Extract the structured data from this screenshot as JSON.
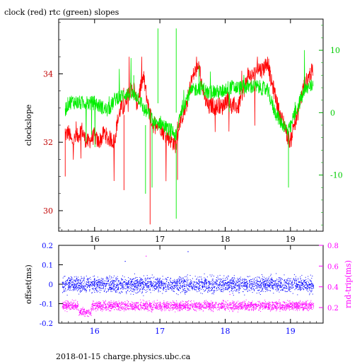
{
  "title": "clock (red) rtc (green) slopes",
  "footer": "2018-01-15 charge.physics.ubc.ca",
  "colors": {
    "red": "#ff0000",
    "green": "#00ee00",
    "blue": "#0000ff",
    "magenta": "#ff00ff",
    "axis": "#000000"
  },
  "chart_data": [
    {
      "type": "line",
      "title": "clock (red) rtc (green) slopes",
      "ylabel": "clockslope",
      "y2label": "",
      "xlim": [
        15.45,
        19.5
      ],
      "ylim": [
        29.4,
        35.6
      ],
      "y2lim": [
        -19,
        15
      ],
      "x_ticks": [
        16,
        17,
        18,
        19
      ],
      "y_ticks": [
        30,
        32,
        34
      ],
      "y2_ticks": [
        -10,
        0,
        10
      ],
      "series": [
        {
          "name": "clock",
          "color": "#ff0000",
          "axis": "left",
          "x": [
            15.55,
            15.6,
            15.65,
            15.7,
            15.75,
            15.8,
            15.85,
            15.9,
            15.95,
            16.0,
            16.05,
            16.1,
            16.15,
            16.2,
            16.25,
            16.3,
            16.35,
            16.4,
            16.45,
            16.5,
            16.55,
            16.6,
            16.65,
            16.7,
            16.75,
            16.8,
            16.85,
            16.9,
            16.95,
            17.0,
            17.05,
            17.1,
            17.15,
            17.2,
            17.25,
            17.3,
            17.35,
            17.4,
            17.45,
            17.5,
            17.55,
            17.6,
            17.65,
            17.7,
            17.75,
            17.8,
            17.85,
            17.9,
            17.95,
            18.0,
            18.05,
            18.1,
            18.15,
            18.2,
            18.25,
            18.3,
            18.35,
            18.4,
            18.45,
            18.5,
            18.55,
            18.6,
            18.65,
            18.7,
            18.75,
            18.8,
            18.85,
            18.9,
            18.95,
            19.0,
            19.05,
            19.1,
            19.15,
            19.2,
            19.25,
            19.3,
            19.35
          ],
          "y": [
            32.2,
            32.3,
            32.0,
            32.1,
            32.2,
            32.4,
            32.1,
            32.0,
            32.1,
            32.2,
            32.0,
            32.1,
            32.3,
            32.1,
            32.1,
            32.0,
            32.6,
            33.0,
            33.0,
            33.4,
            33.5,
            33.6,
            33.1,
            33.6,
            33.9,
            33.3,
            32.8,
            32.5,
            32.6,
            32.5,
            32.3,
            32.2,
            32.1,
            32.0,
            31.9,
            32.6,
            32.8,
            33.0,
            33.5,
            33.9,
            34.1,
            34.2,
            33.6,
            33.2,
            33.0,
            33.1,
            33.0,
            33.1,
            33.0,
            33.2,
            33.3,
            33.0,
            33.1,
            33.0,
            33.4,
            33.6,
            34.0,
            33.9,
            34.0,
            34.2,
            34.1,
            34.2,
            34.4,
            33.8,
            33.5,
            33.1,
            32.7,
            32.6,
            32.2,
            32.0,
            32.5,
            32.7,
            33.2,
            33.6,
            33.8,
            34.0,
            34.1
          ],
          "y_range": [
            29.6,
            34.5
          ]
        },
        {
          "name": "rtc",
          "color": "#00ee00",
          "axis": "right",
          "x": [
            15.55,
            15.6,
            15.65,
            15.7,
            15.75,
            15.8,
            15.85,
            15.9,
            15.95,
            16.0,
            16.05,
            16.1,
            16.15,
            16.2,
            16.25,
            16.3,
            16.35,
            16.4,
            16.45,
            16.5,
            16.55,
            16.6,
            16.65,
            16.7,
            16.75,
            16.8,
            16.85,
            16.9,
            16.95,
            17.0,
            17.05,
            17.1,
            17.15,
            17.2,
            17.25,
            17.3,
            17.35,
            17.4,
            17.45,
            17.5,
            17.55,
            17.6,
            17.65,
            17.7,
            17.75,
            17.8,
            17.85,
            17.9,
            17.95,
            18.0,
            18.05,
            18.1,
            18.15,
            18.2,
            18.25,
            18.3,
            18.35,
            18.4,
            18.45,
            18.5,
            18.55,
            18.6,
            18.65,
            18.7,
            18.75,
            18.8,
            18.85,
            18.9,
            18.95,
            19.0,
            19.05,
            19.1,
            19.15,
            19.2,
            19.25,
            19.3,
            19.35
          ],
          "y": [
            0.5,
            1.5,
            1.8,
            1.7,
            1.6,
            1.5,
            1.7,
            1.5,
            1.5,
            1.6,
            1.2,
            1.0,
            0.6,
            0.4,
            1.0,
            2.0,
            2.5,
            2.5,
            3.0,
            3.0,
            3.0,
            2.8,
            2.7,
            2.0,
            0.5,
            0.2,
            -0.5,
            -1.5,
            -2.0,
            -1.5,
            -2.0,
            -2.5,
            -2.8,
            -3.0,
            -4.0,
            -0.5,
            1.0,
            2.0,
            3.0,
            3.5,
            3.8,
            4.0,
            4.0,
            3.5,
            3.0,
            3.5,
            3.3,
            3.3,
            3.3,
            3.8,
            4.0,
            4.1,
            4.0,
            4.0,
            4.0,
            4.1,
            4.1,
            4.2,
            4.2,
            4.1,
            4.0,
            3.8,
            3.5,
            2.0,
            0.5,
            -0.5,
            -1.5,
            -2.0,
            -3.0,
            -2.5,
            -0.5,
            0.5,
            2.0,
            3.0,
            4.0,
            4.1,
            4.5
          ],
          "y_range": [
            -17,
            13
          ]
        }
      ]
    },
    {
      "type": "scatter",
      "ylabel": "offset(ms)",
      "y2label": "rnd-trip(ms)",
      "xlim": [
        15.45,
        19.5
      ],
      "ylim": [
        -0.2,
        0.2
      ],
      "y2lim": [
        0.05,
        0.8
      ],
      "x_ticks": [
        16,
        17,
        18,
        19
      ],
      "y_ticks": [
        -0.2,
        -0.1,
        0,
        0.1,
        0.2
      ],
      "y2_ticks": [
        0.2,
        0.4,
        0.6,
        0.8
      ],
      "series": [
        {
          "name": "offset",
          "color": "#0000ff",
          "axis": "left",
          "x_range": [
            15.5,
            19.35
          ],
          "center": 0.0,
          "spread": [
            -0.06,
            0.06
          ],
          "outliers": [
            0.12,
            0.17,
            -0.1
          ]
        },
        {
          "name": "rnd-trip",
          "color": "#ff00ff",
          "axis": "right",
          "x_range": [
            15.5,
            19.35
          ],
          "center": 0.22,
          "spread": [
            0.15,
            0.28
          ],
          "dip": {
            "x": [
              15.75,
              15.95
            ],
            "center": 0.16
          },
          "outliers": [
            0.7,
            0.33
          ]
        }
      ]
    }
  ]
}
